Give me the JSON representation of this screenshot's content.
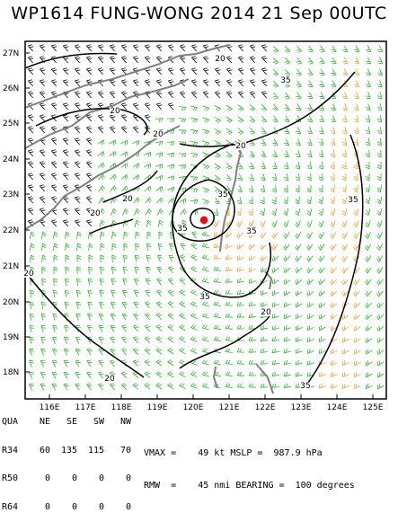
{
  "title": "WP1614  FUNG-WONG 2014 21 Sep 00UTC",
  "map": {
    "lat_labels": [
      "27N",
      "26N",
      "25N",
      "24N",
      "23N",
      "22N",
      "21N",
      "20N",
      "19N",
      "18N"
    ],
    "lon_labels": [
      "116E",
      "117E",
      "118E",
      "119E",
      "120E",
      "121E",
      "122E",
      "123E",
      "124E",
      "125E"
    ],
    "contour_labels": [
      "20",
      "20",
      "20",
      "20",
      "20",
      "20",
      "20",
      "20",
      "20",
      "35",
      "35",
      "35",
      "35",
      "35",
      "35",
      "35"
    ],
    "colors": {
      "land": "#808080",
      "barb_green": "#22bb22",
      "barb_orange": "#e8a030",
      "barb_black": "#000000",
      "center": "#ff0000",
      "contour": "#000000"
    }
  },
  "quadrants": {
    "header": [
      "QUA",
      "NE",
      "SE",
      "SW",
      "NW"
    ],
    "rows": [
      [
        "R34",
        "60",
        "135",
        "115",
        "70"
      ],
      [
        "R50",
        "0",
        "0",
        "0",
        "0"
      ],
      [
        "R64",
        "0",
        "0",
        "0",
        "0"
      ]
    ]
  },
  "stats": {
    "line1": "VMAX =    49 kt MSLP =  987.9 hPa",
    "line2": "RMW  =    45 nmi BEARING =  100 degrees"
  }
}
